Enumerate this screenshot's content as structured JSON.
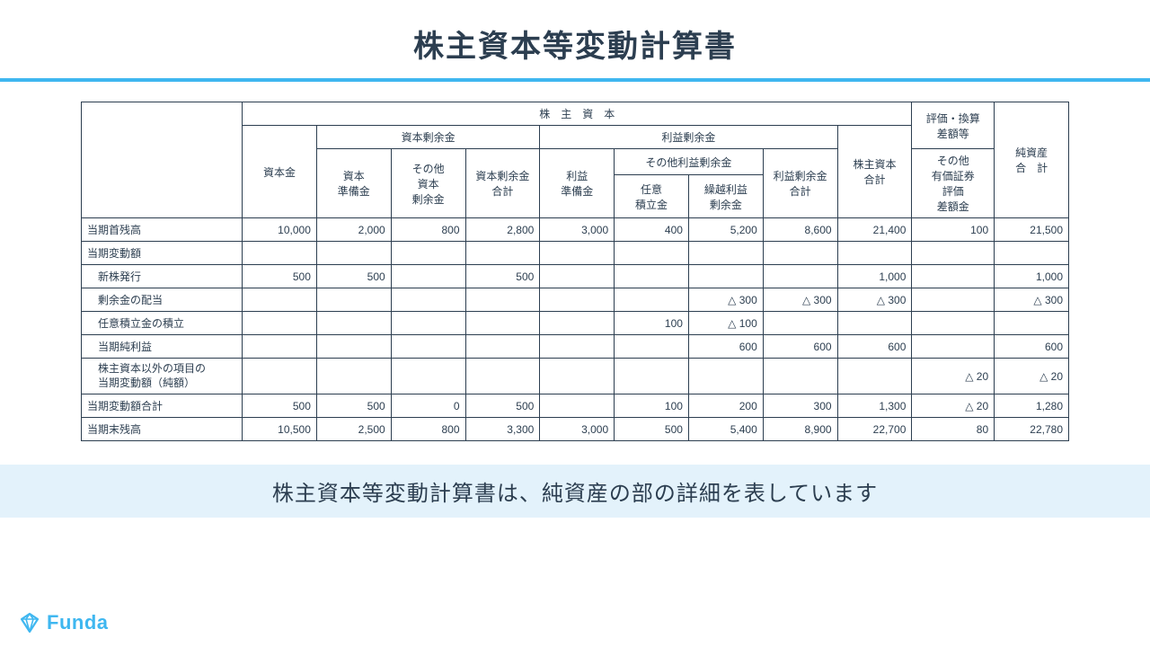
{
  "title": "株主資本等変動計算書",
  "caption": "株主資本等変動計算書は、純資産の部の詳細を表しています",
  "brand": "Funda",
  "colors": {
    "accent": "#3fb7f0",
    "captionBg": "#e3f2fb",
    "text": "#2c3e50",
    "border": "#2c3e50"
  },
  "headers": {
    "blankCorner": "",
    "shareholdersEquity": "株　主　資　本",
    "valConvDiff": "評価・換算\n差額等",
    "netAssetsTotal": "純資産\n合　計",
    "capitalStock": "資本金",
    "capitalSurplus": "資本剰余金",
    "retainedEarnings": "利益剰余金",
    "shareholdersEquityTotal": "株主資本\n合計",
    "otherSecuritiesValDiff": "その他\n有価証券\n評価\n差額金",
    "capitalReserve": "資本\n準備金",
    "otherCapitalSurplus": "その他\n資本\n剰余金",
    "capitalSurplusTotal": "資本剰余金\n合計",
    "earnedReserve": "利益\n準備金",
    "otherRetainedEarnings": "その他利益剰余金",
    "retainedEarningsTotal": "利益剰余金\n合計",
    "voluntaryReserve": "任意\n積立金",
    "carriedForward": "繰越利益\n剰余金"
  },
  "rows": [
    {
      "label": "当期首残高",
      "indent": 0,
      "cells": [
        "10,000",
        "2,000",
        "800",
        "2,800",
        "3,000",
        "400",
        "5,200",
        "8,600",
        "21,400",
        "100",
        "21,500"
      ]
    },
    {
      "label": "当期変動額",
      "indent": 0,
      "cells": [
        "",
        "",
        "",
        "",
        "",
        "",
        "",
        "",
        "",
        "",
        ""
      ]
    },
    {
      "label": "新株発行",
      "indent": 1,
      "cells": [
        "500",
        "500",
        "",
        "500",
        "",
        "",
        "",
        "",
        "1,000",
        "",
        "1,000"
      ]
    },
    {
      "label": "剰余金の配当",
      "indent": 1,
      "cells": [
        "",
        "",
        "",
        "",
        "",
        "",
        "△ 300",
        "△ 300",
        "△ 300",
        "",
        "△ 300"
      ]
    },
    {
      "label": "任意積立金の積立",
      "indent": 1,
      "cells": [
        "",
        "",
        "",
        "",
        "",
        "100",
        "△ 100",
        "",
        "",
        "",
        ""
      ]
    },
    {
      "label": "当期純利益",
      "indent": 1,
      "cells": [
        "",
        "",
        "",
        "",
        "",
        "",
        "600",
        "600",
        "600",
        "",
        "600"
      ]
    },
    {
      "label": "株主資本以外の項目の\n当期変動額（純額）",
      "indent": 1,
      "cells": [
        "",
        "",
        "",
        "",
        "",
        "",
        "",
        "",
        "",
        "△ 20",
        "△ 20"
      ]
    },
    {
      "label": "当期変動額合計",
      "indent": 0,
      "cells": [
        "500",
        "500",
        "0",
        "500",
        "",
        "100",
        "200",
        "300",
        "1,300",
        "△ 20",
        "1,280"
      ]
    },
    {
      "label": "当期末残高",
      "indent": 0,
      "cells": [
        "10,500",
        "2,500",
        "800",
        "3,300",
        "3,000",
        "500",
        "5,400",
        "8,900",
        "22,700",
        "80",
        "22,780"
      ]
    }
  ]
}
